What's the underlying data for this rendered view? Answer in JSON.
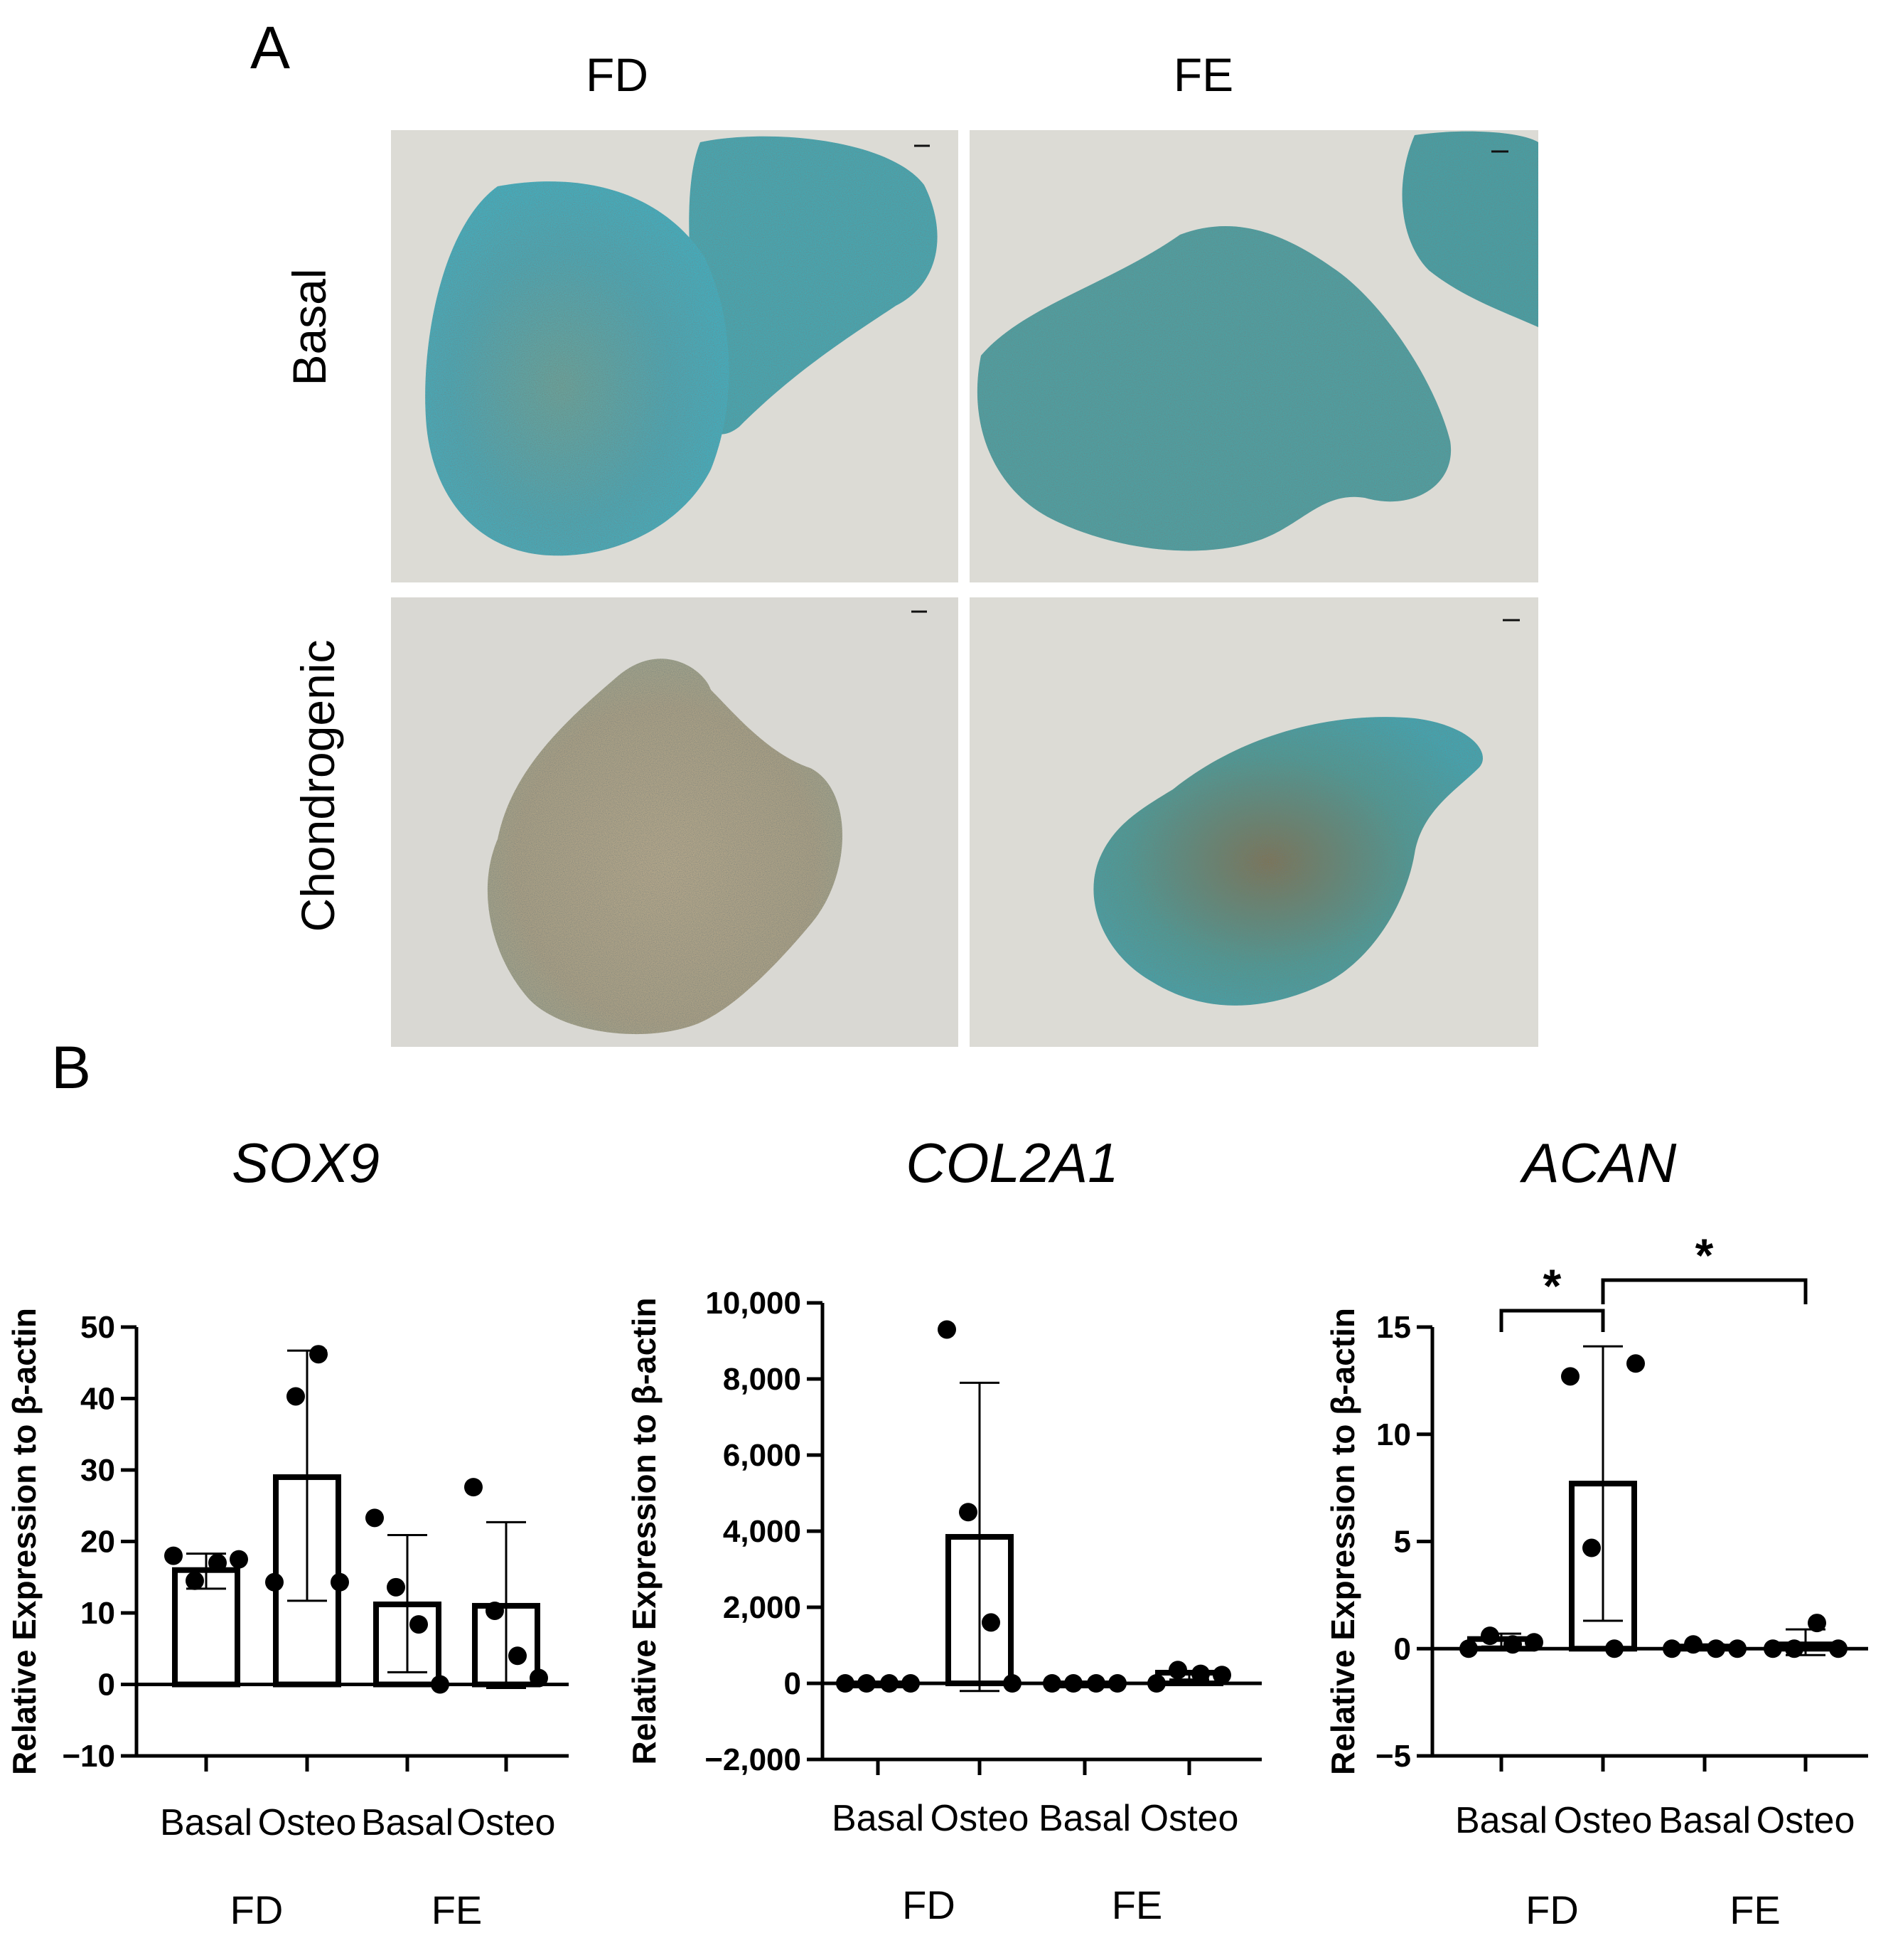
{
  "panel_a": {
    "label": "A",
    "columns": [
      "FD",
      "FE"
    ],
    "rows": [
      "Basal",
      "Chondrogenic"
    ],
    "colors": {
      "background": "#dad9d3",
      "stain_blue": "#3fa9b6",
      "stain_teal": "#4c9a8e",
      "stain_brown": "#a98563",
      "stain_tan": "#b9a98a"
    }
  },
  "panel_b": {
    "label": "B"
  },
  "chart_data": [
    {
      "type": "bar",
      "title": "SOX9",
      "ylabel": "Relative Expression to β-actin",
      "ylim": [
        -10,
        50
      ],
      "yticks": [
        -10,
        0,
        10,
        20,
        30,
        40,
        50
      ],
      "ytick_labels": [
        "−10",
        "0",
        "10",
        "20",
        "30",
        "40",
        "50"
      ],
      "categories": [
        "Basal",
        "Osteo",
        "Basal",
        "Osteo"
      ],
      "groups": [
        "FD",
        "FE"
      ],
      "values": [
        16,
        29,
        11.2,
        11
      ],
      "error": [
        [
          13.4,
          18.3
        ],
        [
          11.7,
          46.7
        ],
        [
          1.7,
          20.9
        ],
        [
          -0.5,
          22.7
        ]
      ],
      "points": [
        [
          18,
          14.5,
          17,
          17.5
        ],
        [
          14.3,
          40.3,
          46.2,
          14.3
        ],
        [
          23.3,
          13.6,
          8.4,
          0
        ],
        [
          27.6,
          10.3,
          4,
          0.9
        ]
      ],
      "significance": []
    },
    {
      "type": "bar",
      "title": "COL2A1",
      "ylabel": "Relative Expression to β-actin",
      "ylim": [
        -2000,
        10000
      ],
      "yticks": [
        -2000,
        0,
        2000,
        4000,
        6000,
        8000,
        10000
      ],
      "ytick_labels": [
        "−2,000",
        "0",
        "2,000",
        "4,000",
        "6,000",
        "8,000",
        "10,000"
      ],
      "categories": [
        "Basal",
        "Osteo",
        "Basal",
        "Osteo"
      ],
      "groups": [
        "FD",
        "FE"
      ],
      "values": [
        0,
        3850,
        0,
        280
      ],
      "error": [
        [
          0,
          0
        ],
        [
          -200,
          7900
        ],
        [
          0,
          0
        ],
        [
          100,
          300
        ]
      ],
      "points": [
        [
          0,
          0,
          0,
          0
        ],
        [
          9300,
          4500,
          1600,
          0
        ],
        [
          0,
          0,
          0,
          0
        ],
        [
          0,
          350,
          250,
          220
        ]
      ],
      "significance": []
    },
    {
      "type": "bar",
      "title": "ACAN",
      "ylabel": "Relative Expression to β-actin",
      "ylim": [
        -5,
        15
      ],
      "yticks": [
        -5,
        0,
        5,
        10,
        15
      ],
      "ytick_labels": [
        "−5",
        "0",
        "5",
        "10",
        "15"
      ],
      "categories": [
        "Basal",
        "Osteo",
        "Basal",
        "Osteo"
      ],
      "groups": [
        "FD",
        "FE"
      ],
      "values": [
        0.45,
        7.7,
        0.1,
        0.2
      ],
      "error": [
        [
          0.1,
          0.7
        ],
        [
          1.3,
          14.1
        ],
        [
          0,
          0.2
        ],
        [
          -0.3,
          0.9
        ]
      ],
      "points": [
        [
          0,
          0.6,
          0.2,
          0.3
        ],
        [
          12.7,
          4.7,
          0,
          13.3
        ],
        [
          0,
          0.2,
          0,
          0
        ],
        [
          0,
          0,
          1.2,
          0
        ]
      ],
      "significance": [
        {
          "from": 0,
          "to": 1,
          "label": "*"
        },
        {
          "from": 1,
          "to": 3,
          "label": "*"
        }
      ]
    }
  ]
}
